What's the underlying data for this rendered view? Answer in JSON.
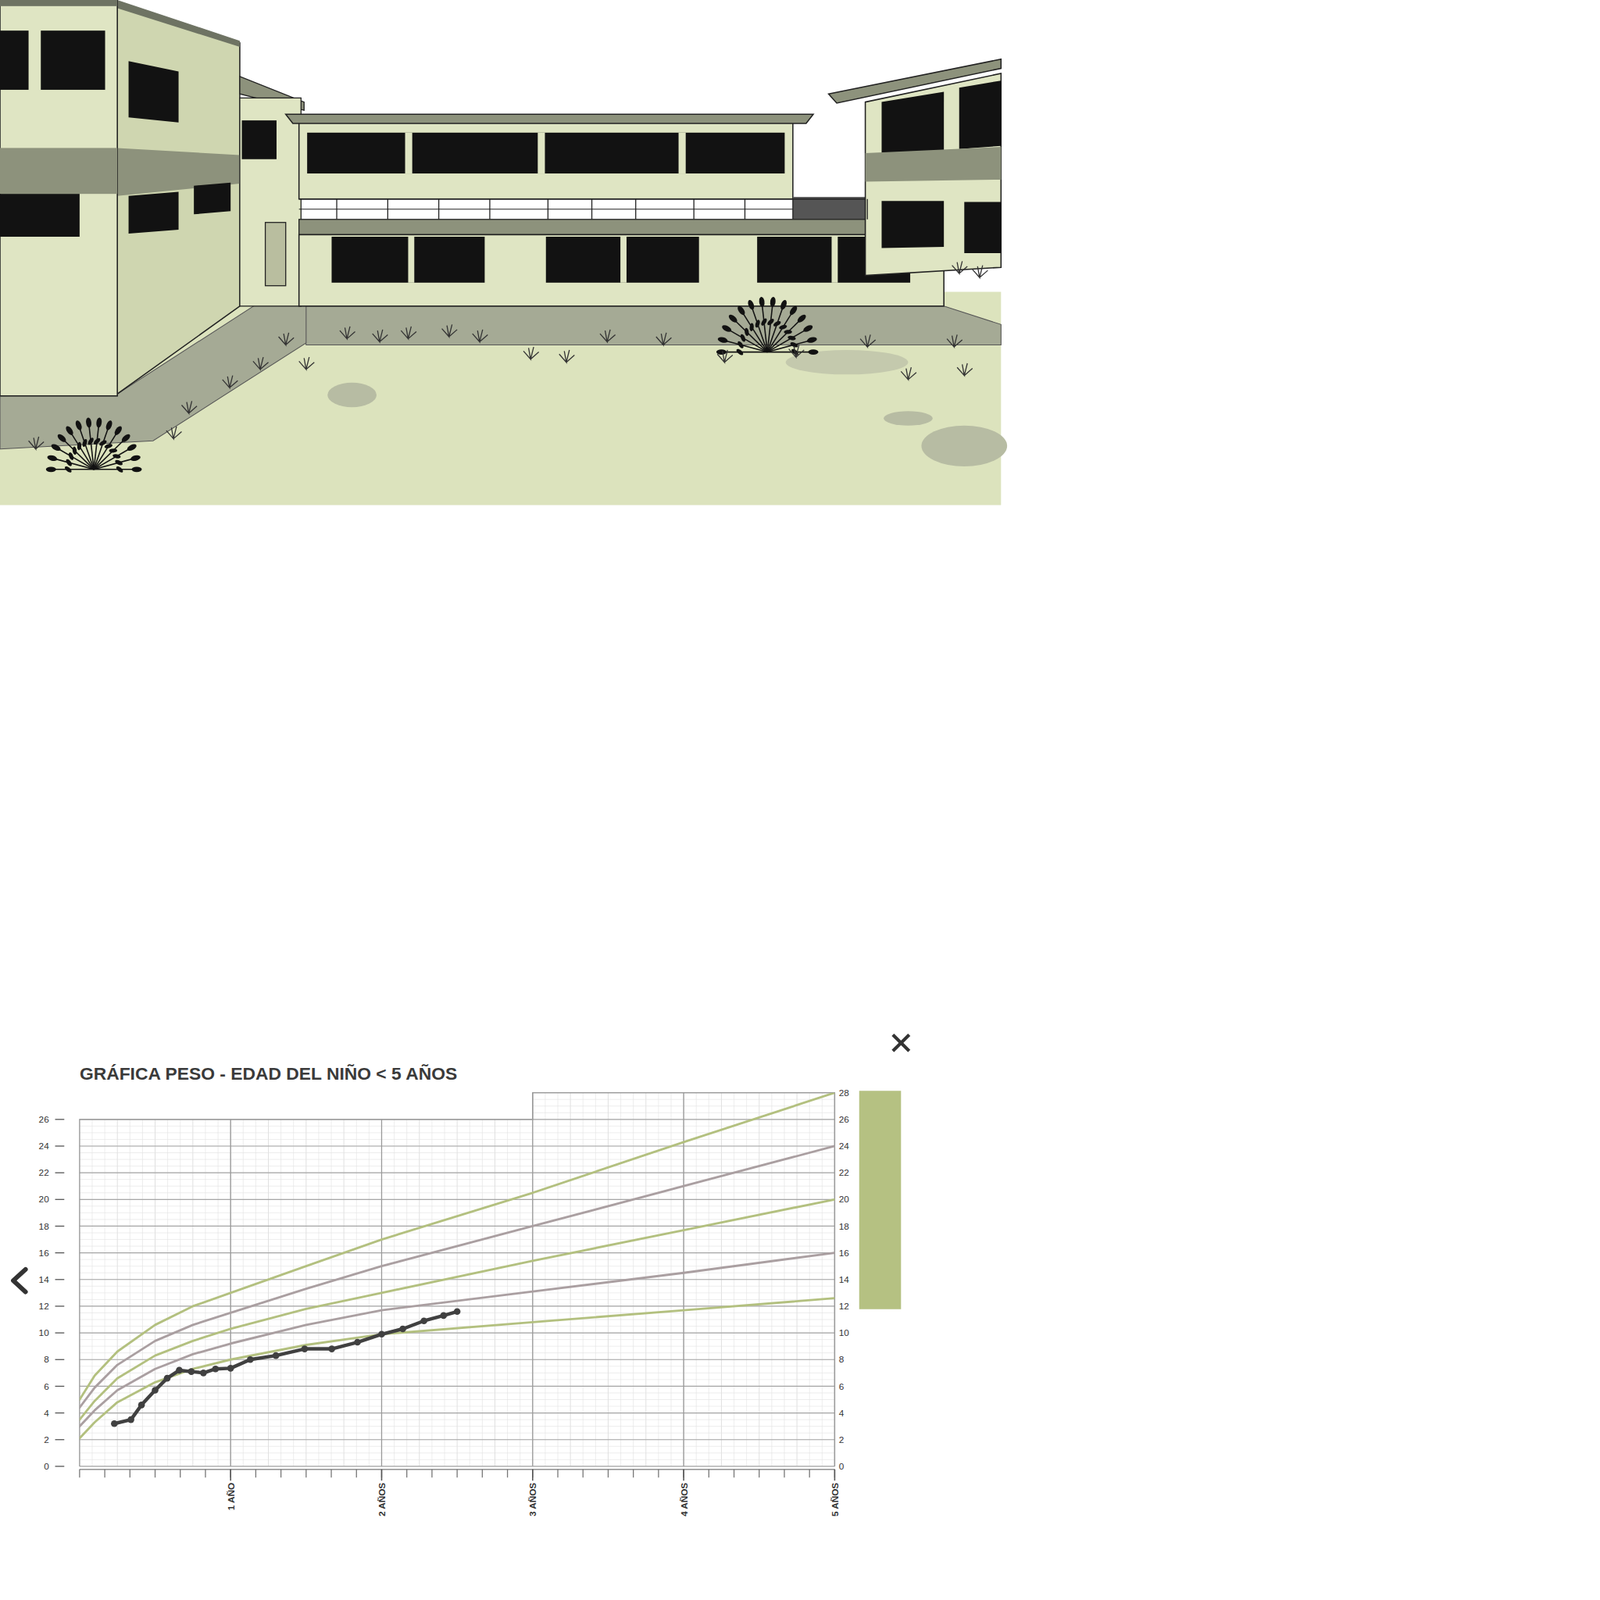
{
  "chart_data": {
    "type": "line",
    "title": "GRÁFICA PESO - EDAD DEL NIÑO < 5 AÑOS",
    "xlim": [
      0,
      5
    ],
    "xticks": [
      {
        "value": 1,
        "label": "1 AÑO"
      },
      {
        "value": 2,
        "label": "2 AÑOS"
      },
      {
        "value": 3,
        "label": "3 AÑOS"
      },
      {
        "value": 4,
        "label": "4 AÑOS"
      },
      {
        "value": 5,
        "label": "5 AÑOS"
      }
    ],
    "ylim": [
      0,
      26
    ],
    "yticks": [
      0,
      2,
      4,
      6,
      8,
      10,
      12,
      14,
      16,
      18,
      20,
      22,
      24,
      26
    ],
    "y2lim": [
      0,
      28
    ],
    "y2ticks": [
      0,
      2,
      4,
      6,
      8,
      10,
      12,
      14,
      16,
      18,
      20,
      22,
      24,
      26,
      28
    ],
    "grid": true,
    "series": [
      {
        "color": "#b3c07f",
        "axis": "y2",
        "x": [
          0,
          0.1,
          0.25,
          0.5,
          0.75,
          1,
          1.5,
          2,
          3,
          4,
          5
        ],
        "values": [
          5.0,
          6.8,
          8.6,
          10.6,
          12.0,
          13.0,
          15.0,
          17.0,
          20.5,
          24.3,
          28.0
        ]
      },
      {
        "color": "#aa9fa1",
        "axis": "y2",
        "x": [
          0,
          0.1,
          0.25,
          0.5,
          0.75,
          1,
          1.5,
          2,
          3,
          4,
          5
        ],
        "values": [
          4.4,
          5.9,
          7.6,
          9.4,
          10.6,
          11.5,
          13.3,
          15.0,
          18.0,
          21.0,
          24.0
        ]
      },
      {
        "color": "#b3c07f",
        "axis": "y2",
        "x": [
          0,
          0.1,
          0.25,
          0.5,
          0.75,
          1,
          1.5,
          2,
          3,
          4,
          5
        ],
        "values": [
          3.5,
          4.9,
          6.6,
          8.3,
          9.4,
          10.3,
          11.8,
          13.0,
          15.4,
          17.7,
          20.0
        ]
      },
      {
        "color": "#aa9fa1",
        "axis": "y2",
        "x": [
          0,
          0.1,
          0.25,
          0.5,
          0.75,
          1,
          1.5,
          2,
          3,
          4,
          5
        ],
        "values": [
          3.0,
          4.2,
          5.7,
          7.3,
          8.4,
          9.2,
          10.6,
          11.7,
          13.1,
          14.5,
          16.0
        ]
      },
      {
        "color": "#b3c07f",
        "axis": "y2",
        "x": [
          0,
          0.1,
          0.25,
          0.5,
          0.75,
          1,
          1.5,
          2,
          3,
          4,
          5
        ],
        "values": [
          2.1,
          3.3,
          4.8,
          6.3,
          7.3,
          8.0,
          9.1,
          9.9,
          10.8,
          11.7,
          12.6
        ]
      },
      {
        "color": "#404040",
        "marker": "circle",
        "x": [
          0.23,
          0.34,
          0.41,
          0.5,
          0.58,
          0.66,
          0.74,
          0.82,
          0.9,
          1.0,
          1.13,
          1.3,
          1.49,
          1.67,
          1.84,
          2.0,
          2.14,
          2.28,
          2.41,
          2.5
        ],
        "values": [
          3.2,
          3.5,
          4.6,
          5.7,
          6.6,
          7.2,
          7.1,
          7.0,
          7.3,
          7.35,
          8.0,
          8.3,
          8.8,
          8.8,
          9.3,
          9.9,
          10.3,
          10.9,
          11.3,
          11.6
        ]
      }
    ]
  }
}
